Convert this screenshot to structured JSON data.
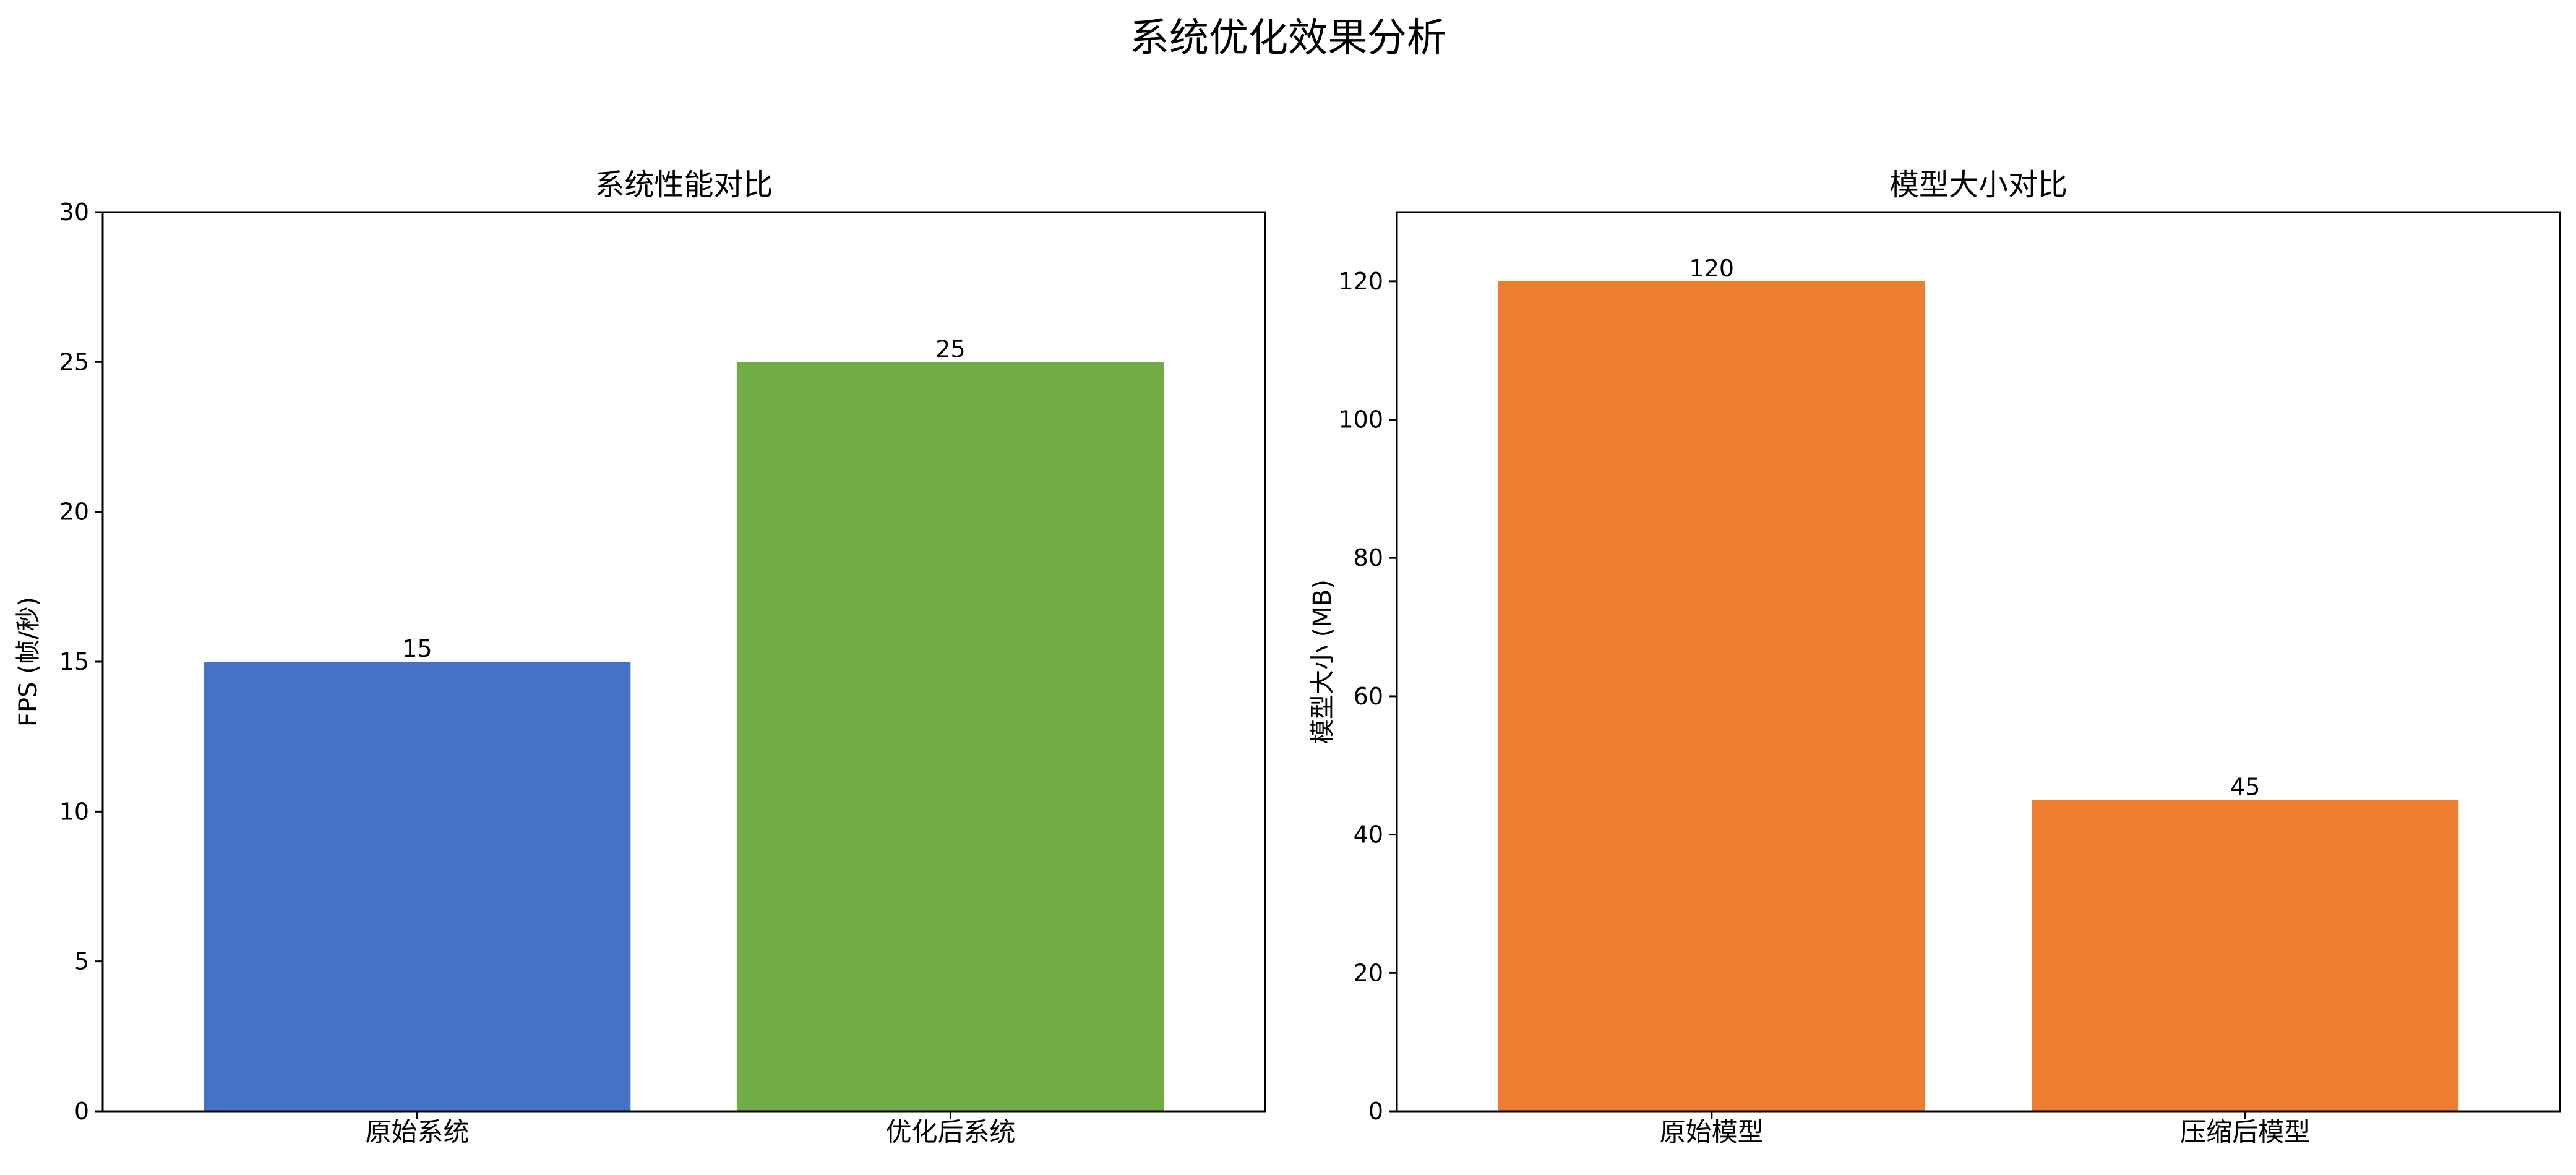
{
  "figure": {
    "suptitle": "系统优化效果分析"
  },
  "chart_data": [
    {
      "type": "bar",
      "title": "系统性能对比",
      "xlabel": "",
      "ylabel": "FPS (帧/秒)",
      "categories": [
        "原始系统",
        "优化后系统"
      ],
      "values": [
        15,
        25
      ],
      "value_labels": [
        "15",
        "25"
      ],
      "colors": [
        "#4472C4",
        "#70AD47"
      ],
      "ylim": [
        0,
        30
      ],
      "yticks": [
        0,
        5,
        10,
        15,
        20,
        25,
        30
      ],
      "grid": false,
      "legend": "none"
    },
    {
      "type": "bar",
      "title": "模型大小对比",
      "xlabel": "",
      "ylabel": "模型大小 (MB)",
      "categories": [
        "原始模型",
        "压缩后模型"
      ],
      "values": [
        120,
        45
      ],
      "value_labels": [
        "120",
        "45"
      ],
      "colors": [
        "#ED7D31",
        "#ED7D31"
      ],
      "ylim": [
        0,
        130
      ],
      "yticks": [
        0,
        20,
        40,
        60,
        80,
        100,
        120
      ],
      "grid": false,
      "legend": "none"
    }
  ]
}
